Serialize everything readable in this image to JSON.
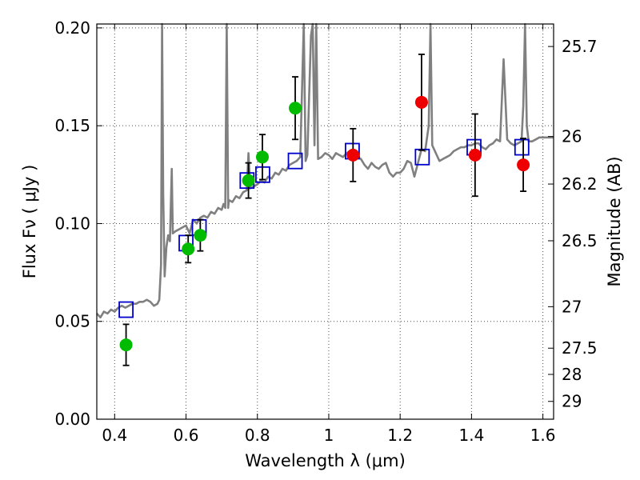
{
  "chart_data": {
    "type": "scatter",
    "title": "",
    "xlabel": "Wavelength  λ (μm)",
    "ylabel": "Flux  Fν  ( μJy )",
    "y2label": "Magnitude (AB)",
    "xlim": [
      0.35,
      1.63
    ],
    "ylim": [
      0.0,
      0.202
    ],
    "grid": true,
    "x_ticks": [
      0.4,
      0.6,
      0.8,
      1.0,
      1.2,
      1.4,
      1.6
    ],
    "x_tick_labels": [
      "0.4",
      "0.6",
      "0.8",
      "1",
      "1.2",
      "1.4",
      "1.6"
    ],
    "y_ticks": [
      0.0,
      0.05,
      0.1,
      0.15,
      0.2
    ],
    "y_tick_labels": [
      "0.00",
      "0.05",
      "0.10",
      "0.15",
      "0.20"
    ],
    "y2_ticks": [
      {
        "label": "25.7",
        "flux": 0.1905
      },
      {
        "label": "26",
        "flux": 0.1445
      },
      {
        "label": "26.2",
        "flux": 0.1202
      },
      {
        "label": "26.5",
        "flux": 0.0912
      },
      {
        "label": "27",
        "flux": 0.0575
      },
      {
        "label": "27.5",
        "flux": 0.0363
      },
      {
        "label": "28",
        "flux": 0.0229
      },
      {
        "label": "29",
        "flux": 0.0091
      }
    ],
    "colors": {
      "spectrum": "#808080",
      "model": "#0000cc",
      "green": "#00bb00",
      "red": "#ee0000",
      "errorbar": "#000000"
    },
    "series": [
      {
        "type": "line",
        "points": [
          [
            0.35,
            0.054
          ],
          [
            0.36,
            0.052
          ],
          [
            0.37,
            0.055
          ],
          [
            0.38,
            0.054
          ],
          [
            0.39,
            0.056
          ],
          [
            0.4,
            0.055
          ],
          [
            0.41,
            0.057
          ],
          [
            0.42,
            0.058
          ],
          [
            0.43,
            0.057
          ],
          [
            0.44,
            0.058
          ],
          [
            0.45,
            0.059
          ],
          [
            0.46,
            0.059
          ],
          [
            0.47,
            0.06
          ],
          [
            0.48,
            0.06
          ],
          [
            0.49,
            0.061
          ],
          [
            0.5,
            0.06
          ],
          [
            0.51,
            0.058
          ],
          [
            0.52,
            0.059
          ],
          [
            0.525,
            0.061
          ],
          [
            0.53,
            0.079
          ],
          [
            0.533,
            0.202
          ],
          [
            0.536,
            0.115
          ],
          [
            0.54,
            0.073
          ],
          [
            0.545,
            0.088
          ],
          [
            0.55,
            0.094
          ],
          [
            0.555,
            0.091
          ],
          [
            0.56,
            0.128
          ],
          [
            0.563,
            0.095
          ],
          [
            0.57,
            0.096
          ],
          [
            0.58,
            0.097
          ],
          [
            0.59,
            0.098
          ],
          [
            0.6,
            0.099
          ],
          [
            0.61,
            0.095
          ],
          [
            0.62,
            0.102
          ],
          [
            0.63,
            0.1
          ],
          [
            0.64,
            0.103
          ],
          [
            0.65,
            0.104
          ],
          [
            0.66,
            0.103
          ],
          [
            0.67,
            0.106
          ],
          [
            0.68,
            0.105
          ],
          [
            0.69,
            0.108
          ],
          [
            0.7,
            0.107
          ],
          [
            0.705,
            0.11
          ],
          [
            0.71,
            0.108
          ],
          [
            0.714,
            0.202
          ],
          [
            0.718,
            0.108
          ],
          [
            0.72,
            0.112
          ],
          [
            0.73,
            0.111
          ],
          [
            0.74,
            0.114
          ],
          [
            0.75,
            0.113
          ],
          [
            0.76,
            0.116
          ],
          [
            0.77,
            0.117
          ],
          [
            0.775,
            0.136
          ],
          [
            0.78,
            0.118
          ],
          [
            0.79,
            0.119
          ],
          [
            0.8,
            0.12
          ],
          [
            0.81,
            0.122
          ],
          [
            0.82,
            0.121
          ],
          [
            0.83,
            0.124
          ],
          [
            0.84,
            0.123
          ],
          [
            0.85,
            0.126
          ],
          [
            0.86,
            0.125
          ],
          [
            0.87,
            0.128
          ],
          [
            0.88,
            0.127
          ],
          [
            0.89,
            0.13
          ],
          [
            0.9,
            0.131
          ],
          [
            0.91,
            0.132
          ],
          [
            0.92,
            0.134
          ],
          [
            0.93,
            0.202
          ],
          [
            0.935,
            0.132
          ],
          [
            0.94,
            0.135
          ],
          [
            0.95,
            0.196
          ],
          [
            0.955,
            0.202
          ],
          [
            0.96,
            0.14
          ],
          [
            0.965,
            0.202
          ],
          [
            0.97,
            0.133
          ],
          [
            0.98,
            0.134
          ],
          [
            0.99,
            0.136
          ],
          [
            1.0,
            0.135
          ],
          [
            1.01,
            0.133
          ],
          [
            1.02,
            0.136
          ],
          [
            1.03,
            0.135
          ],
          [
            1.04,
            0.134
          ],
          [
            1.05,
            0.136
          ],
          [
            1.06,
            0.137
          ],
          [
            1.07,
            0.136
          ],
          [
            1.08,
            0.134
          ],
          [
            1.09,
            0.133
          ],
          [
            1.1,
            0.13
          ],
          [
            1.11,
            0.128
          ],
          [
            1.12,
            0.131
          ],
          [
            1.13,
            0.129
          ],
          [
            1.14,
            0.128
          ],
          [
            1.15,
            0.13
          ],
          [
            1.16,
            0.131
          ],
          [
            1.17,
            0.126
          ],
          [
            1.18,
            0.124
          ],
          [
            1.19,
            0.126
          ],
          [
            1.2,
            0.126
          ],
          [
            1.21,
            0.128
          ],
          [
            1.22,
            0.132
          ],
          [
            1.23,
            0.131
          ],
          [
            1.24,
            0.124
          ],
          [
            1.25,
            0.131
          ],
          [
            1.26,
            0.138
          ],
          [
            1.27,
            0.137
          ],
          [
            1.28,
            0.15
          ],
          [
            1.285,
            0.202
          ],
          [
            1.29,
            0.14
          ],
          [
            1.3,
            0.136
          ],
          [
            1.31,
            0.132
          ],
          [
            1.32,
            0.133
          ],
          [
            1.33,
            0.134
          ],
          [
            1.34,
            0.135
          ],
          [
            1.35,
            0.137
          ],
          [
            1.36,
            0.138
          ],
          [
            1.37,
            0.139
          ],
          [
            1.38,
            0.139
          ],
          [
            1.39,
            0.14
          ],
          [
            1.4,
            0.14
          ],
          [
            1.41,
            0.141
          ],
          [
            1.42,
            0.141
          ],
          [
            1.43,
            0.139
          ],
          [
            1.44,
            0.138
          ],
          [
            1.45,
            0.14
          ],
          [
            1.46,
            0.141
          ],
          [
            1.47,
            0.143
          ],
          [
            1.48,
            0.142
          ],
          [
            1.49,
            0.184
          ],
          [
            1.5,
            0.143
          ],
          [
            1.51,
            0.141
          ],
          [
            1.52,
            0.14
          ],
          [
            1.53,
            0.141
          ],
          [
            1.54,
            0.142
          ],
          [
            1.545,
            0.16
          ],
          [
            1.55,
            0.202
          ],
          [
            1.555,
            0.15
          ],
          [
            1.56,
            0.142
          ],
          [
            1.57,
            0.142
          ],
          [
            1.58,
            0.143
          ],
          [
            1.59,
            0.144
          ],
          [
            1.6,
            0.144
          ],
          [
            1.61,
            0.144
          ],
          [
            1.63,
            0.144
          ]
        ]
      },
      {
        "marker": "open-square",
        "points": [
          [
            0.432,
            0.056
          ],
          [
            0.6,
            0.09
          ],
          [
            0.637,
            0.098
          ],
          [
            0.771,
            0.122
          ],
          [
            0.815,
            0.125
          ],
          [
            0.906,
            0.132
          ],
          [
            1.066,
            0.137
          ],
          [
            1.262,
            0.134
          ],
          [
            1.407,
            0.139
          ],
          [
            1.541,
            0.139
          ]
        ]
      },
      {
        "marker": "filled-circle",
        "color": "green",
        "points": [
          {
            "x": 0.432,
            "y": 0.038,
            "err": 0.0105
          },
          {
            "x": 0.606,
            "y": 0.087,
            "err": 0.007
          },
          {
            "x": 0.64,
            "y": 0.094,
            "err": 0.008
          },
          {
            "x": 0.775,
            "y": 0.122,
            "err": 0.009
          },
          {
            "x": 0.814,
            "y": 0.134,
            "err": 0.0115
          },
          {
            "x": 0.906,
            "y": 0.159,
            "err": 0.016
          }
        ]
      },
      {
        "marker": "filled-circle",
        "color": "red",
        "points": [
          {
            "x": 1.068,
            "y": 0.135,
            "err": 0.0135
          },
          {
            "x": 1.26,
            "y": 0.162,
            "err": 0.0245
          },
          {
            "x": 1.41,
            "y": 0.135,
            "err": 0.021
          },
          {
            "x": 1.545,
            "y": 0.13,
            "err": 0.0135
          }
        ]
      }
    ]
  }
}
